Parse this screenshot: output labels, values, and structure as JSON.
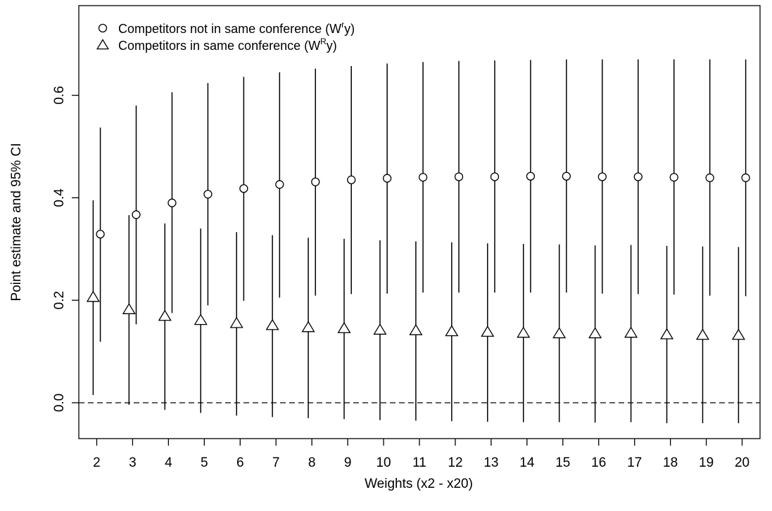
{
  "chart_data": {
    "type": "scatter",
    "title": "",
    "xlabel": "Weights (x2 - x20)",
    "ylabel": "Point estimate and 95% CI",
    "x": [
      2,
      3,
      4,
      5,
      6,
      7,
      8,
      9,
      10,
      11,
      12,
      13,
      14,
      15,
      16,
      17,
      18,
      19,
      20
    ],
    "x_tick_labels": [
      "2",
      "3",
      "4",
      "5",
      "6",
      "7",
      "8",
      "9",
      "10",
      "11",
      "12",
      "13",
      "14",
      "15",
      "16",
      "17",
      "18",
      "19",
      "20"
    ],
    "y_ticks": [
      0.0,
      0.2,
      0.4,
      0.6
    ],
    "y_tick_labels": [
      "0.0",
      "0.2",
      "0.4",
      "0.6"
    ],
    "xlim": [
      1.5,
      20.5
    ],
    "ylim": [
      -0.07,
      0.775
    ],
    "reference_line": {
      "y": 0,
      "style": "dashed"
    },
    "legend_position": "top-left",
    "series": [
      {
        "name": "Competitors not in same conference (W",
        "name_sup": "r",
        "name_suffix": "y)",
        "marker": "circle",
        "x_offset": 0.1,
        "values": [
          0.329,
          0.367,
          0.39,
          0.407,
          0.418,
          0.426,
          0.431,
          0.435,
          0.438,
          0.44,
          0.441,
          0.441,
          0.442,
          0.442,
          0.441,
          0.441,
          0.44,
          0.439,
          0.439
        ],
        "ci_lower": [
          0.119,
          0.153,
          0.175,
          0.19,
          0.199,
          0.205,
          0.209,
          0.212,
          0.213,
          0.215,
          0.215,
          0.215,
          0.215,
          0.215,
          0.213,
          0.212,
          0.211,
          0.209,
          0.208
        ],
        "ci_upper": [
          0.537,
          0.58,
          0.606,
          0.624,
          0.636,
          0.645,
          0.652,
          0.657,
          0.662,
          0.665,
          0.667,
          0.668,
          0.669,
          0.67,
          0.67,
          0.67,
          0.67,
          0.67,
          0.67
        ]
      },
      {
        "name": "Competitors in same conference (W",
        "name_sup": "R",
        "name_suffix": "y)",
        "marker": "triangle",
        "x_offset": -0.1,
        "values": [
          0.206,
          0.182,
          0.169,
          0.161,
          0.155,
          0.151,
          0.147,
          0.145,
          0.142,
          0.141,
          0.139,
          0.138,
          0.136,
          0.135,
          0.135,
          0.136,
          0.133,
          0.132,
          0.132
        ],
        "ci_lower": [
          0.015,
          -0.004,
          -0.014,
          -0.02,
          -0.025,
          -0.028,
          -0.03,
          -0.032,
          -0.034,
          -0.035,
          -0.036,
          -0.037,
          -0.038,
          -0.038,
          -0.039,
          -0.038,
          -0.04,
          -0.04,
          -0.04
        ],
        "ci_upper": [
          0.395,
          0.366,
          0.35,
          0.34,
          0.333,
          0.327,
          0.322,
          0.32,
          0.317,
          0.315,
          0.313,
          0.311,
          0.31,
          0.309,
          0.307,
          0.308,
          0.306,
          0.305,
          0.304
        ]
      }
    ]
  }
}
